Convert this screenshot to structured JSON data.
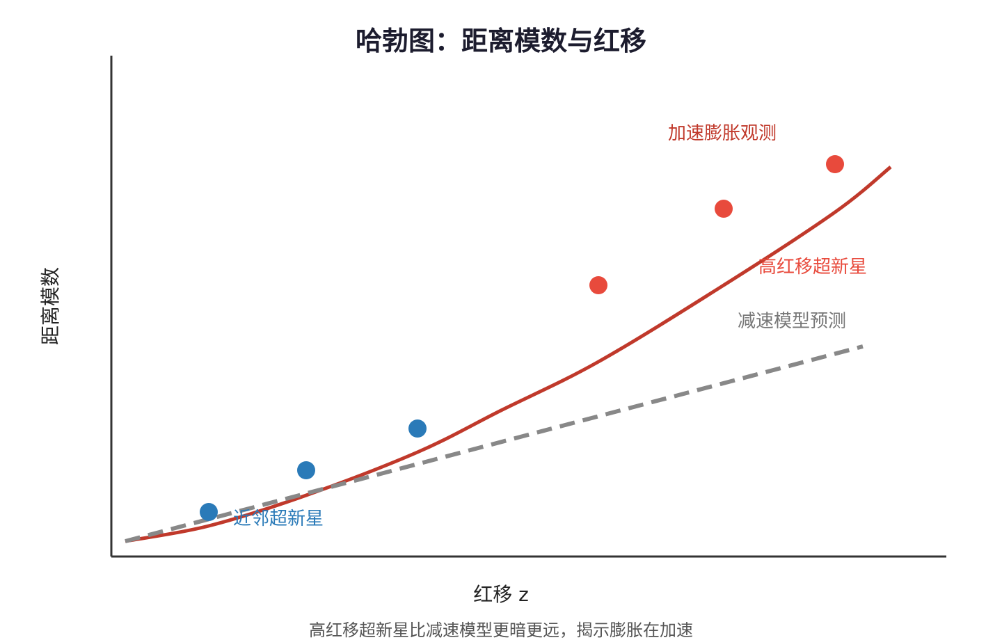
{
  "chart_data": {
    "type": "scatter",
    "title": "哈勃图：距离模数与红移",
    "xlabel": "红移 z",
    "ylabel": "距离模数",
    "caption": "高红移超新星比减速模型更暗更远，揭示膨胀在加速",
    "xlim": [
      0,
      1200
    ],
    "ylim": [
      0,
      720
    ],
    "ticks": "none",
    "grid": false,
    "series": [
      {
        "name": "近邻超新星",
        "kind": "points",
        "color": "#2a7ab8",
        "points": [
          [
            140,
            64
          ],
          [
            280,
            124
          ],
          [
            440,
            184
          ]
        ]
      },
      {
        "name": "高红移超新星",
        "kind": "points",
        "color": "#e84a3c",
        "points": [
          [
            700,
            390
          ],
          [
            880,
            500
          ],
          [
            1040,
            564
          ]
        ]
      },
      {
        "name": "加速膨胀观测",
        "kind": "line",
        "style": "solid",
        "color": "#c0392b",
        "points": [
          [
            20,
            22
          ],
          [
            140,
            44
          ],
          [
            280,
            88
          ],
          [
            440,
            150
          ],
          [
            560,
            210
          ],
          [
            700,
            280
          ],
          [
            880,
            390
          ],
          [
            1040,
            495
          ],
          [
            1120,
            560
          ]
        ]
      },
      {
        "name": "减速模型预测",
        "kind": "line",
        "style": "dashed",
        "color": "#888888",
        "points": [
          [
            20,
            22
          ],
          [
            1080,
            302
          ]
        ]
      }
    ],
    "annotations": [
      {
        "text": "加速膨胀观测",
        "x": 800,
        "y": 600,
        "color": "#c0392b"
      },
      {
        "text": "高红移超新星",
        "x": 930,
        "y": 408,
        "color": "#e84a3c"
      },
      {
        "text": "减速模型预测",
        "x": 900,
        "y": 330,
        "color": "#777777"
      },
      {
        "text": "近邻超新星",
        "x": 175,
        "y": 46,
        "color": "#2a7ab8"
      }
    ]
  }
}
